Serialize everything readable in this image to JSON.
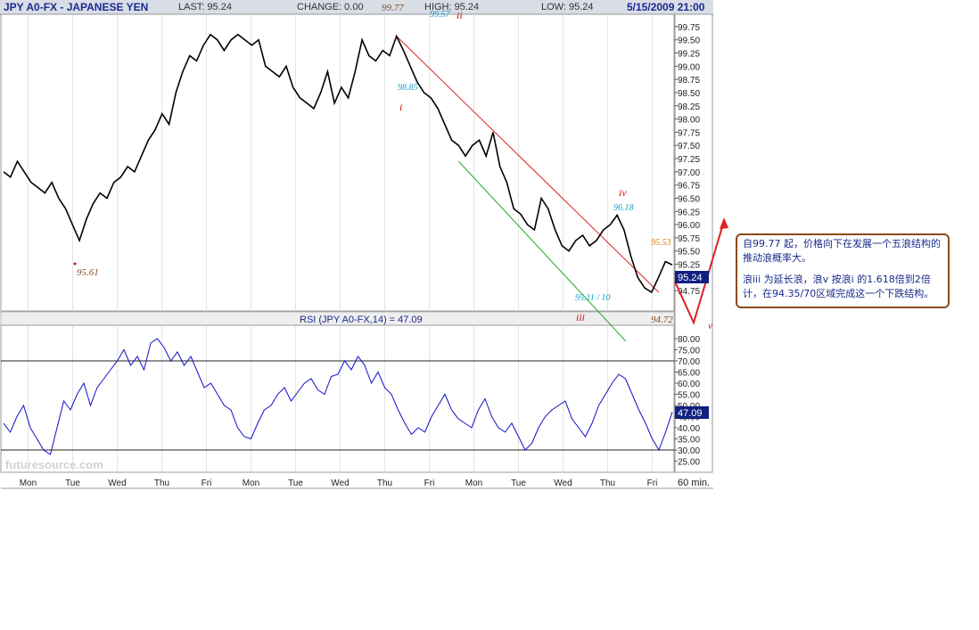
{
  "header": {
    "symbol": "JPY A0-FX - JAPANESE YEN",
    "last": "LAST: 95.24",
    "change": "CHANGE: 0.00",
    "open_value": "99.77",
    "high": "HIGH: 95.24",
    "low": "LOW: 95.24",
    "datetime": "5/15/2009 21:00"
  },
  "watermark": "futuresource.com",
  "rsi_label": "RSI (JPY A0-FX,14) = 47.09",
  "interval_label": "60 min.",
  "note": {
    "line1": "自99.77 起，价格向下在发展一个五浪结构的推动浪概率大。",
    "line2": "浪iii 为延长浪，浪v 按浪i 的1.618倍到2倍计，在94.35/70区域完成这一个下跌结构。"
  },
  "annotations": [
    {
      "text": "99.77",
      "color": "#8b4a1c"
    },
    {
      "text": "99.57",
      "color": "#1aa0c8"
    },
    {
      "text": "ii",
      "color": "#cc1111"
    },
    {
      "text": "98.85",
      "color": "#1aa0c8"
    },
    {
      "text": "i",
      "color": "#cc1111"
    },
    {
      "text": "95.61",
      "color": "#8b4a1c"
    },
    {
      "text": "iv",
      "color": "#cc1111"
    },
    {
      "text": "96.18",
      "color": "#1aa0c8"
    },
    {
      "text": "95.53",
      "color": "#e07a10"
    },
    {
      "text": "95.11 / 10",
      "color": "#1aa0c8"
    },
    {
      "text": "iii",
      "color": "#cc1111"
    },
    {
      "text": "94.72",
      "color": "#8b4a1c"
    },
    {
      "text": "v",
      "color": "#cc1111"
    }
  ],
  "colors": {
    "price": "#000000",
    "rsi": "#1010c8",
    "upper_channel": "#dd2222",
    "lower_channel": "#22aa22",
    "projection": "#dd2222",
    "accent": "#1b2a8f"
  },
  "chart_data": [
    {
      "type": "line",
      "title": "JPY A0-FX - JAPANESE YEN",
      "interval": "60 min.",
      "ylim": [
        94.5,
        99.85
      ],
      "y_ticks": [
        "99.75",
        "99.50",
        "99.25",
        "99.00",
        "98.75",
        "98.50",
        "98.25",
        "98.00",
        "97.75",
        "97.50",
        "97.25",
        "97.00",
        "96.75",
        "96.50",
        "96.25",
        "96.00",
        "95.75",
        "95.50",
        "95.25",
        "94.75"
      ],
      "x_ticks": [
        "Mon",
        "Tue",
        "Wed",
        "Thu",
        "Fri",
        "Mon",
        "Tue",
        "Wed",
        "Thu",
        "Fri",
        "Mon",
        "Tue",
        "Wed",
        "Thu",
        "Fri"
      ],
      "last_value": "95.24",
      "series": [
        {
          "values": [
            97.0,
            96.9,
            97.2,
            97.0,
            96.8,
            96.7,
            96.6,
            96.8,
            96.5,
            96.3,
            96.0,
            95.7,
            96.1,
            96.4,
            96.6,
            96.5,
            96.8,
            96.9,
            97.1,
            97.0,
            97.3,
            97.6,
            97.8,
            98.1,
            97.9,
            98.5,
            98.9,
            99.2,
            99.1,
            99.4,
            99.6,
            99.5,
            99.3,
            99.5,
            99.6,
            99.5,
            99.4,
            99.5,
            99.0,
            98.9,
            98.8,
            99.0,
            98.6,
            98.4,
            98.3,
            98.2,
            98.5,
            98.9,
            98.3,
            98.6,
            98.4,
            98.9,
            99.5,
            99.2,
            99.1,
            99.3,
            99.2,
            99.57,
            99.3,
            99.0,
            98.7,
            98.5,
            98.4,
            98.2,
            97.9,
            97.6,
            97.5,
            97.3,
            97.5,
            97.6,
            97.3,
            97.75,
            97.1,
            96.8,
            96.3,
            96.2,
            96.0,
            95.9,
            96.5,
            96.3,
            95.9,
            95.6,
            95.5,
            95.7,
            95.8,
            95.6,
            95.7,
            95.9,
            96.0,
            96.18,
            95.9,
            95.4,
            95.0,
            94.8,
            94.72,
            95.0,
            95.3,
            95.24
          ]
        }
      ],
      "markers": [
        99.77,
        99.57,
        98.85,
        96.18,
        95.61,
        95.53,
        95.11,
        95.1,
        94.72
      ],
      "channel": {
        "upper": [
          [
            99.57,
            94.72
          ]
        ],
        "lower": [
          [
            97.2,
            93.8
          ]
        ]
      }
    },
    {
      "type": "line",
      "title": "RSI (JPY A0-FX,14) = 47.09",
      "ylim": [
        24,
        82
      ],
      "y_ticks": [
        "80.00",
        "75.00",
        "70.00",
        "65.00",
        "60.00",
        "55.00",
        "50.00",
        "45.00",
        "40.00",
        "35.00",
        "30.00",
        "25.00"
      ],
      "reference_lines": [
        70,
        30
      ],
      "last_value": "47.09",
      "series": [
        {
          "values": [
            42,
            38,
            45,
            50,
            40,
            35,
            30,
            28,
            40,
            52,
            48,
            55,
            60,
            50,
            58,
            62,
            66,
            70,
            75,
            68,
            72,
            66,
            78,
            80,
            76,
            70,
            74,
            68,
            72,
            65,
            58,
            60,
            55,
            50,
            48,
            40,
            36,
            35,
            42,
            48,
            50,
            55,
            58,
            52,
            56,
            60,
            62,
            57,
            55,
            63,
            64,
            70,
            66,
            72,
            68,
            60,
            65,
            58,
            55,
            48,
            42,
            37,
            40,
            38,
            45,
            50,
            55,
            48,
            44,
            42,
            40,
            48,
            53,
            45,
            40,
            38,
            42,
            36,
            30,
            33,
            40,
            45,
            48,
            50,
            52,
            44,
            40,
            36,
            42,
            50,
            55,
            60,
            64,
            62,
            55,
            48,
            42,
            35,
            30,
            38,
            47.09
          ]
        }
      ]
    }
  ]
}
